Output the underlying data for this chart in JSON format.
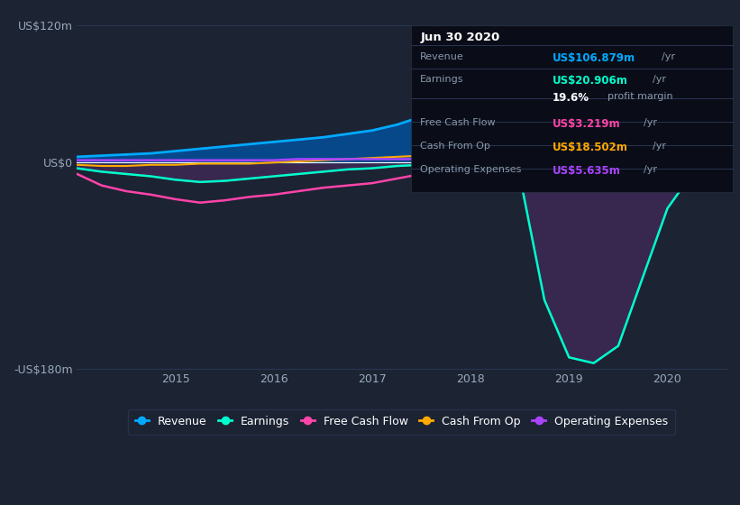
{
  "bg_color": "#1c2333",
  "plot_bg_color": "#1c2333",
  "grid_color": "#2a3550",
  "zero_line_color": "#ffffff",
  "years": [
    2014.0,
    2014.25,
    2014.5,
    2014.75,
    2015.0,
    2015.25,
    2015.5,
    2015.75,
    2016.0,
    2016.25,
    2016.5,
    2016.75,
    2017.0,
    2017.25,
    2017.5,
    2017.75,
    2018.0,
    2018.25,
    2018.5,
    2018.75,
    2019.0,
    2019.25,
    2019.5,
    2019.75,
    2020.0,
    2020.25,
    2020.5
  ],
  "revenue": [
    5,
    6,
    7,
    8,
    10,
    12,
    14,
    16,
    18,
    20,
    22,
    25,
    28,
    33,
    40,
    50,
    60,
    68,
    76,
    85,
    90,
    95,
    100,
    103,
    105,
    107,
    106.879
  ],
  "earnings": [
    -5,
    -8,
    -10,
    -12,
    -15,
    -17,
    -16,
    -14,
    -12,
    -10,
    -8,
    -6,
    -5,
    -3,
    -2,
    -4,
    -5,
    -8,
    -12,
    -120,
    -170,
    -175,
    -160,
    -100,
    -40,
    -10,
    20.906
  ],
  "free_cash_flow": [
    -10,
    -20,
    -25,
    -28,
    -32,
    -35,
    -33,
    -30,
    -28,
    -25,
    -22,
    -20,
    -18,
    -14,
    -10,
    -8,
    -7,
    -8,
    -9,
    -10,
    -11,
    -10,
    -8,
    -5,
    -3,
    1,
    3.219
  ],
  "cash_from_op": [
    -2,
    -3,
    -3,
    -2,
    -2,
    -1,
    -1,
    -1,
    0,
    1,
    2,
    3,
    4,
    5,
    6,
    7,
    8,
    8,
    9,
    8,
    7,
    8,
    10,
    12,
    15,
    17,
    18.502
  ],
  "op_expenses": [
    2,
    2,
    2,
    2,
    2,
    2,
    2,
    2,
    2,
    3,
    3,
    3,
    3,
    3,
    3,
    4,
    4,
    4,
    4,
    5,
    5,
    5,
    5,
    5,
    5,
    6,
    5.635
  ],
  "revenue_color": "#00aaff",
  "earnings_color": "#00ffcc",
  "free_cash_flow_color": "#ff44aa",
  "cash_from_op_color": "#ffaa00",
  "op_expenses_color": "#aa44ff",
  "revenue_fill_color": "#0055aa",
  "earnings_fill_color": "#5a1020",
  "ylim_min": -180,
  "ylim_max": 130,
  "yticks": [
    -180,
    0,
    120
  ],
  "ytick_labels": [
    "-US$180m",
    "US$0",
    "US$120m"
  ],
  "xtick_years": [
    2015,
    2016,
    2017,
    2018,
    2019,
    2020
  ],
  "tooltip": {
    "date": "Jun 30 2020",
    "revenue_val": "US$106.879m",
    "earnings_val": "US$20.906m",
    "profit_margin": "19.6%",
    "fcf_val": "US$3.219m",
    "cash_op_val": "US$18.502m",
    "op_exp_val": "US$5.635m"
  },
  "legend": [
    {
      "label": "Revenue",
      "color": "#00aaff"
    },
    {
      "label": "Earnings",
      "color": "#00ffcc"
    },
    {
      "label": "Free Cash Flow",
      "color": "#ff44aa"
    },
    {
      "label": "Cash From Op",
      "color": "#ffaa00"
    },
    {
      "label": "Operating Expenses",
      "color": "#aa44ff"
    }
  ]
}
